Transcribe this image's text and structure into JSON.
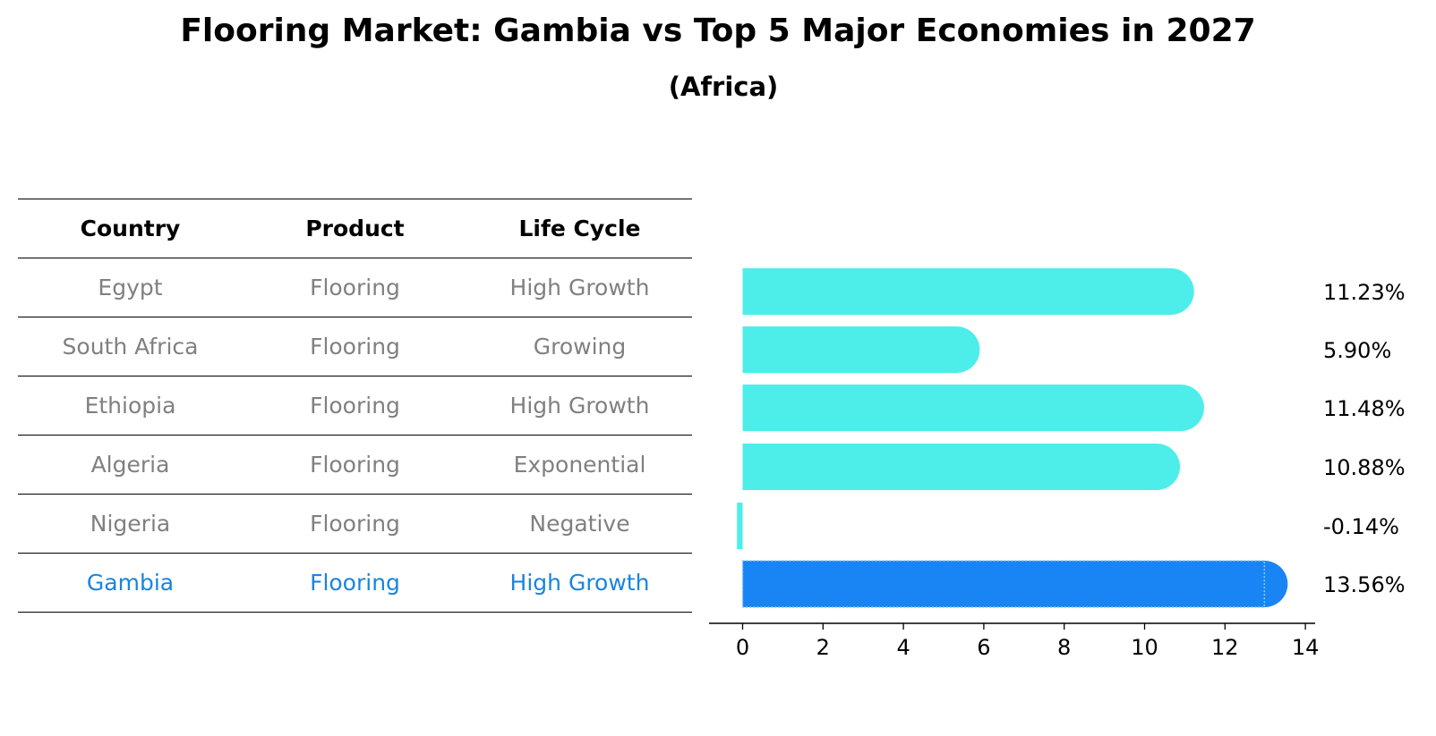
{
  "title": "Flooring Market: Gambia vs Top 5 Major Economies in 2027",
  "subtitle": "(Africa)",
  "table": {
    "headers": [
      "Country",
      "Product",
      "Life Cycle"
    ],
    "rows": [
      [
        "Egypt",
        "Flooring",
        "High Growth"
      ],
      [
        "South Africa",
        "Flooring",
        "Growing"
      ],
      [
        "Ethiopia",
        "Flooring",
        "High Growth"
      ],
      [
        "Algeria",
        "Flooring",
        "Exponential"
      ],
      [
        "Nigeria",
        "Flooring",
        "Negative"
      ],
      [
        "Gambia",
        "Flooring",
        "High Growth"
      ]
    ],
    "highlight_row": 5
  },
  "chart_data": {
    "type": "bar",
    "orientation": "horizontal",
    "categories": [
      "Egypt",
      "South Africa",
      "Ethiopia",
      "Algeria",
      "Nigeria",
      "Gambia"
    ],
    "values": [
      11.23,
      5.9,
      11.48,
      10.88,
      -0.14,
      13.56
    ],
    "value_labels": [
      "11.23%",
      "5.90%",
      "11.48%",
      "10.88%",
      "-0.14%",
      "13.56%"
    ],
    "highlight": "Gambia",
    "xlim": [
      -0.85,
      14.2
    ],
    "xticks": [
      0,
      2,
      4,
      6,
      8,
      10,
      12,
      14
    ],
    "colors": {
      "default": "#4deee9",
      "highlight": "#1985f5"
    },
    "grid": false
  }
}
